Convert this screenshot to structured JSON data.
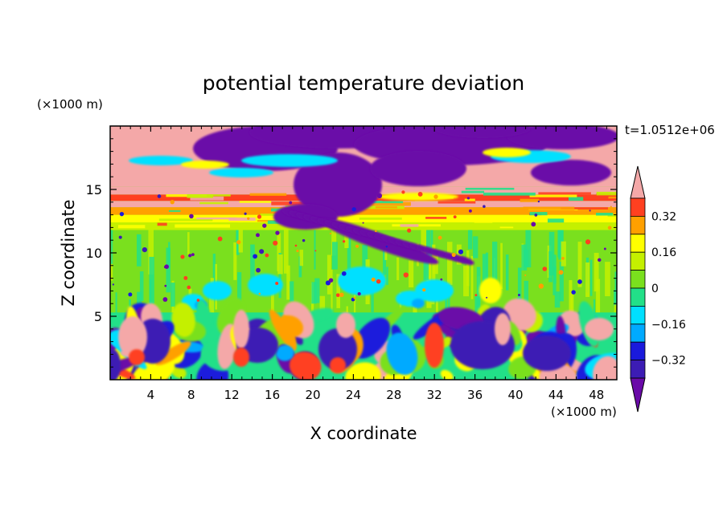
{
  "chart_data": {
    "type": "heatmap",
    "title": "potential temperature deviation",
    "xlabel": "X coordinate",
    "ylabel": "Z coordinate",
    "x_unit": "(×1000 m)",
    "y_unit": "(×1000 m)",
    "time_label": "t=1.0512e+06",
    "xlim": [
      0,
      50
    ],
    "ylim": [
      0,
      20
    ],
    "x_ticks": [
      4,
      8,
      12,
      16,
      20,
      24,
      28,
      32,
      36,
      40,
      44,
      48
    ],
    "y_ticks": [
      5,
      10,
      15
    ],
    "colorbar": {
      "levels": [
        -0.4,
        -0.32,
        -0.24,
        -0.16,
        -0.08,
        0,
        0.08,
        0.16,
        0.24,
        0.32,
        0.4
      ],
      "labels": [
        "0.32",
        "0.16",
        "0",
        "−0.16",
        "−0.32"
      ],
      "label_values": [
        0.32,
        0.16,
        0,
        -0.16,
        -0.32
      ],
      "colors": [
        "#6a0aa8",
        "#3c1cb4",
        "#1a1adc",
        "#00aaff",
        "#00e0ff",
        "#22e088",
        "#7ae01e",
        "#c4f000",
        "#ffff00",
        "#ffa000",
        "#ff4020",
        "#f4a8a8"
      ],
      "extend": "both"
    },
    "bands": [
      {
        "z": [
          0,
          5.3
        ],
        "field": "turbulent boundary layer, mixed -0.4 to 0.4"
      },
      {
        "z": [
          5.3,
          11.8
        ],
        "field": "mostly 0 to 0.08 with cyan streaks"
      },
      {
        "z": [
          11.8,
          15
        ],
        "field": "layered yellow/red/pink with purple plumes"
      },
      {
        "z": [
          15,
          20
        ],
        "field": "pink (>0.4) and purple (<-0.4) patches"
      }
    ]
  }
}
